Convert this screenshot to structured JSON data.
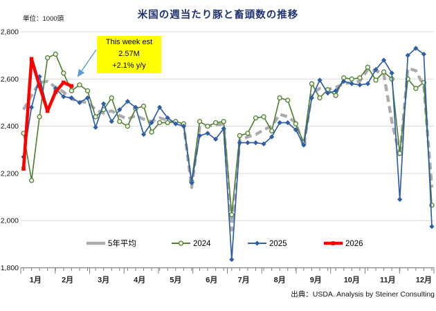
{
  "chart_data": {
    "type": "line",
    "title": "米国の週当たり豚と畜頭数の推移",
    "unit_label": "単位：1000頭",
    "source_note": "出典：USDA. Analysis by Steiner Consulting",
    "grid": true,
    "legend_position": "bottom",
    "y_axis": {
      "min": 1800,
      "max": 2800,
      "ticks": [
        {
          "v": 1800,
          "label": "1,800"
        },
        {
          "v": 2000,
          "label": "2,000"
        },
        {
          "v": 2200,
          "label": "2,200"
        },
        {
          "v": 2400,
          "label": "2,400"
        },
        {
          "v": 2600,
          "label": "2,600"
        },
        {
          "v": 2800,
          "label": "2,800"
        }
      ]
    },
    "x_axis": {
      "unit": "week-of-year",
      "weeks": 52,
      "month_labels": [
        "1月",
        "2月",
        "3月",
        "4月",
        "5月",
        "6月",
        "7月",
        "8月",
        "9月",
        "10月",
        "11月",
        "12月"
      ]
    },
    "annotation": {
      "lines": [
        "This week est",
        "2.57M",
        "+2.1% y/y"
      ],
      "bg_color": "#FFFF00",
      "arrow_color": "#5B9BD5"
    },
    "series": [
      {
        "name": "5年平均",
        "color": "#ABABAB",
        "line_style": "dashed",
        "line_width": 4.3,
        "marker": "none",
        "marker_fill": "#ABABAB",
        "values": [
          2470,
          2530,
          2585,
          2590,
          2565,
          2545,
          2515,
          2505,
          2500,
          2470,
          2455,
          2465,
          2445,
          2430,
          2445,
          2430,
          2420,
          2435,
          2425,
          2415,
          2405,
          2140,
          2395,
          2400,
          2405,
          2410,
          1960,
          2340,
          2355,
          2365,
          2385,
          2400,
          2450,
          2440,
          2415,
          2315,
          2540,
          2560,
          2555,
          2565,
          2580,
          2585,
          2590,
          2640,
          2635,
          2620,
          2420,
          2270,
          2645,
          2635,
          2570,
          2140
        ]
      },
      {
        "name": "2024",
        "color": "#538135",
        "line_style": "solid",
        "line_width": 1.7,
        "marker": "circle",
        "marker_fill": "#ECF3E4",
        "values": [
          2370,
          2170,
          2440,
          2690,
          2705,
          2625,
          2550,
          2575,
          2550,
          2440,
          2470,
          2520,
          2420,
          2400,
          2475,
          2485,
          2375,
          2415,
          2415,
          2420,
          2410,
          2165,
          2420,
          2400,
          2415,
          2420,
          2025,
          2360,
          2370,
          2435,
          2440,
          2380,
          2520,
          2510,
          2410,
          2330,
          2580,
          2520,
          2555,
          2530,
          2605,
          2600,
          2605,
          2650,
          2595,
          2630,
          2600,
          2285,
          2600,
          2560,
          2585,
          2065
        ]
      },
      {
        "name": "2025",
        "color": "#2F5EA8",
        "line_style": "solid",
        "line_width": 1.7,
        "marker": "diamond",
        "marker_fill": "#2F5EA8",
        "values": [
          2270,
          2480,
          2610,
          2470,
          2560,
          2525,
          2520,
          2500,
          2520,
          2395,
          2495,
          2420,
          2470,
          2505,
          2480,
          2365,
          2415,
          2480,
          2435,
          2410,
          2400,
          2160,
          2360,
          2370,
          2345,
          2390,
          1835,
          2330,
          2330,
          2330,
          2325,
          2355,
          2415,
          2415,
          2385,
          2320,
          2520,
          2595,
          2540,
          2550,
          2590,
          2580,
          2575,
          2580,
          2640,
          2680,
          2625,
          2090,
          2700,
          2730,
          2705,
          1975
        ]
      },
      {
        "name": "2026",
        "color": "#FF0000",
        "line_style": "solid",
        "line_width": 4.6,
        "marker": "square",
        "marker_fill": "#FF0000",
        "values": [
          2220,
          2685,
          2570,
          2465,
          2545,
          2585,
          2570
        ]
      }
    ]
  }
}
